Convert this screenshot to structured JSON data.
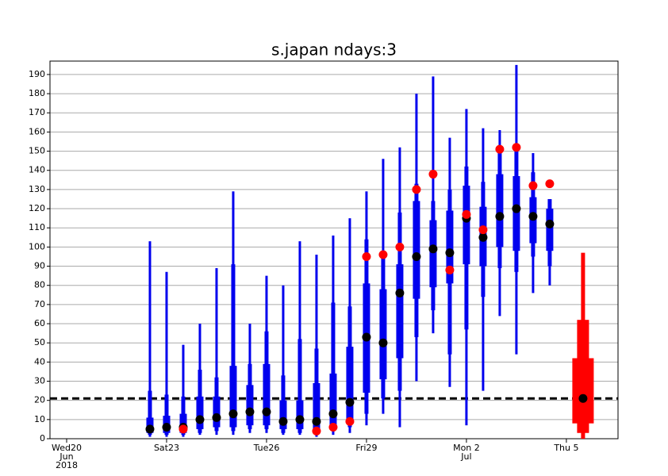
{
  "chart_data": {
    "type": "boxplot",
    "title": "s.japan ndays:3",
    "xlim": [
      -0.5,
      16.55
    ],
    "ylim": [
      0,
      197
    ],
    "xticks": [
      {
        "value": 0,
        "label": [
          "Wed20",
          "Jun",
          "2018"
        ]
      },
      {
        "value": 3,
        "label": [
          "Sat23"
        ]
      },
      {
        "value": 6,
        "label": [
          "Tue26"
        ]
      },
      {
        "value": 9,
        "label": [
          "Fri29"
        ]
      },
      {
        "value": 12,
        "label": [
          "Mon 2",
          "Jul"
        ]
      },
      {
        "value": 15,
        "label": [
          "Thu 5"
        ]
      }
    ],
    "yticks": [
      0,
      10,
      20,
      30,
      40,
      50,
      60,
      70,
      80,
      90,
      100,
      110,
      120,
      130,
      140,
      150,
      160,
      170,
      180,
      190
    ],
    "grid": true,
    "reference_line": 21,
    "boxes": {
      "color": "#0000ee",
      "median_color": "#000000",
      "observed_color": "#ff0000",
      "x": [
        2.5,
        3,
        3.5,
        4,
        4.5,
        5,
        5.5,
        6,
        6.5,
        7,
        7.5,
        8,
        8.5,
        9,
        9.5,
        10,
        10.5,
        11,
        11.5,
        12,
        12.5,
        13,
        13.5,
        14,
        14.5
      ],
      "min": [
        1,
        1,
        1,
        2,
        2,
        2,
        3,
        3,
        2,
        2,
        1,
        2,
        3,
        7,
        13,
        6,
        30,
        55,
        27,
        7,
        25,
        64,
        44,
        76,
        80
      ],
      "p10": [
        2,
        2,
        2,
        3,
        4,
        4,
        5,
        5,
        3,
        3,
        3,
        4,
        6,
        13,
        21,
        25,
        53,
        67,
        44,
        57,
        74,
        89,
        87,
        95,
        90
      ],
      "p25": [
        3,
        3,
        3,
        5,
        6,
        6,
        7,
        7,
        5,
        5,
        5,
        6,
        9,
        24,
        31,
        42,
        73,
        79,
        81,
        91,
        90,
        100,
        98,
        102,
        98
      ],
      "median": [
        5,
        6,
        6,
        10,
        11,
        13,
        14,
        14,
        9,
        10,
        9,
        13,
        19,
        53,
        50,
        76,
        95,
        99,
        97,
        115,
        105,
        116,
        120,
        116,
        112
      ],
      "p75": [
        11,
        12,
        13,
        22,
        22,
        38,
        28,
        39,
        20,
        20,
        29,
        34,
        48,
        81,
        78,
        91,
        124,
        114,
        119,
        132,
        121,
        138,
        137,
        126,
        120
      ],
      "p90": [
        25,
        23,
        22,
        36,
        32,
        91,
        39,
        56,
        33,
        52,
        47,
        71,
        69,
        104,
        97,
        118,
        133,
        124,
        130,
        142,
        134,
        151,
        150,
        139,
        125
      ],
      "max": [
        103,
        87,
        49,
        60,
        89,
        129,
        60,
        85,
        80,
        103,
        96,
        106,
        115,
        129,
        146,
        152,
        180,
        189,
        157,
        172,
        162,
        161,
        195,
        149,
        125
      ],
      "observed": [
        null,
        null,
        5,
        null,
        null,
        null,
        null,
        null,
        null,
        null,
        4,
        6,
        9,
        95,
        96,
        100,
        130,
        138,
        88,
        117,
        109,
        151,
        152,
        132,
        133
      ]
    },
    "forecast": {
      "color": "#ff0000",
      "median_color": "#000000",
      "x": 15.5,
      "min": 0,
      "p10": 3,
      "p25": 8,
      "median": 21,
      "p75": 42,
      "p90": 62,
      "max": 97
    }
  }
}
